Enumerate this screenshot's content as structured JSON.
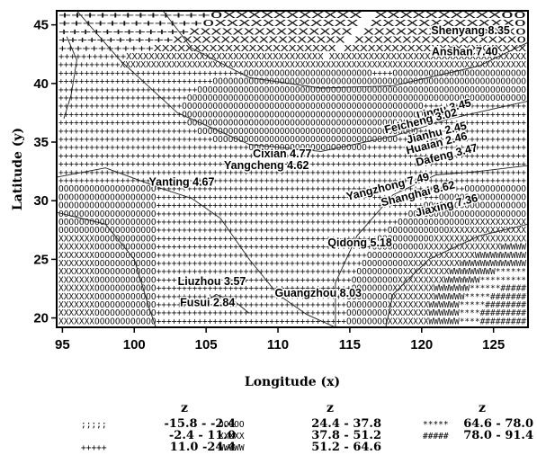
{
  "chart_data": {
    "type": "heatmap",
    "xlabel": "Longitude (x)",
    "ylabel": "Latitude (y)",
    "xlim": [
      94.6,
      127.4
    ],
    "ylim": [
      19.2,
      46.2
    ],
    "x_ticks": [
      95,
      100,
      105,
      110,
      115,
      120,
      125
    ],
    "y_ticks": [
      20,
      25,
      30,
      35,
      40,
      45
    ],
    "grid": false,
    "points": [
      {
        "label": "Shenyang 8.35",
        "lon": 123.4,
        "lat": 44.2
      },
      {
        "label": "Anshan 7.40",
        "lon": 123.0,
        "lat": 42.4
      },
      {
        "label": "Linqu 3.45",
        "lon": 121.6,
        "lat": 37.5
      },
      {
        "label": "Feicheng 3.02",
        "lon": 120.0,
        "lat": 36.5
      },
      {
        "label": "Jianhu 2.45",
        "lon": 121.1,
        "lat": 35.5
      },
      {
        "label": "Huaian 2.46",
        "lon": 121.1,
        "lat": 34.6
      },
      {
        "label": "Dafeng 3.47",
        "lon": 121.8,
        "lat": 33.6
      },
      {
        "label": "Cixian 4.77",
        "lon": 110.3,
        "lat": 33.7
      },
      {
        "label": "Yangcheng 4.62",
        "lon": 109.2,
        "lat": 32.7
      },
      {
        "label": "Yangzhong 7.49",
        "lon": 117.7,
        "lat": 30.9
      },
      {
        "label": "Shanghai 8.62",
        "lon": 119.8,
        "lat": 30.3
      },
      {
        "label": "Jiaxing 7.36",
        "lon": 121.8,
        "lat": 29.3
      },
      {
        "label": "Yanting 4.67",
        "lon": 103.3,
        "lat": 31.3
      },
      {
        "label": "Qidong 5.18",
        "lon": 115.7,
        "lat": 26.1
      },
      {
        "label": "Liuzhou 3.57",
        "lon": 105.4,
        "lat": 22.8
      },
      {
        "label": "Fusui 2.84",
        "lon": 105.1,
        "lat": 21.0
      },
      {
        "label": "Guangzhou 8.03",
        "lon": 112.8,
        "lat": 21.8
      }
    ],
    "legend": {
      "columns": [
        {
          "title": "z",
          "items": [
            {
              "symbol": ";;;;;",
              "range": "-15.8 - -2.4"
            },
            {
              "symbol": "",
              "range": "-2.4 - 11.0"
            },
            {
              "symbol": "+++++",
              "range": "11.0 -24.4"
            }
          ]
        },
        {
          "title": "z",
          "items": [
            {
              "symbol": "OOOOO",
              "range": "24.4 - 37.8"
            },
            {
              "symbol": "XXXXX",
              "range": "37.8 - 51.2"
            },
            {
              "symbol": "WWWWW",
              "range": "51.2 - 64.6"
            }
          ]
        },
        {
          "title": "z",
          "items": [
            {
              "symbol": "*****",
              "range": "64.6 - 78.0"
            },
            {
              "symbol": "#####",
              "range": "78.0 - 91.4"
            }
          ]
        }
      ]
    }
  },
  "colors": {
    "ink": "#000000",
    "background": "#ffffff"
  }
}
